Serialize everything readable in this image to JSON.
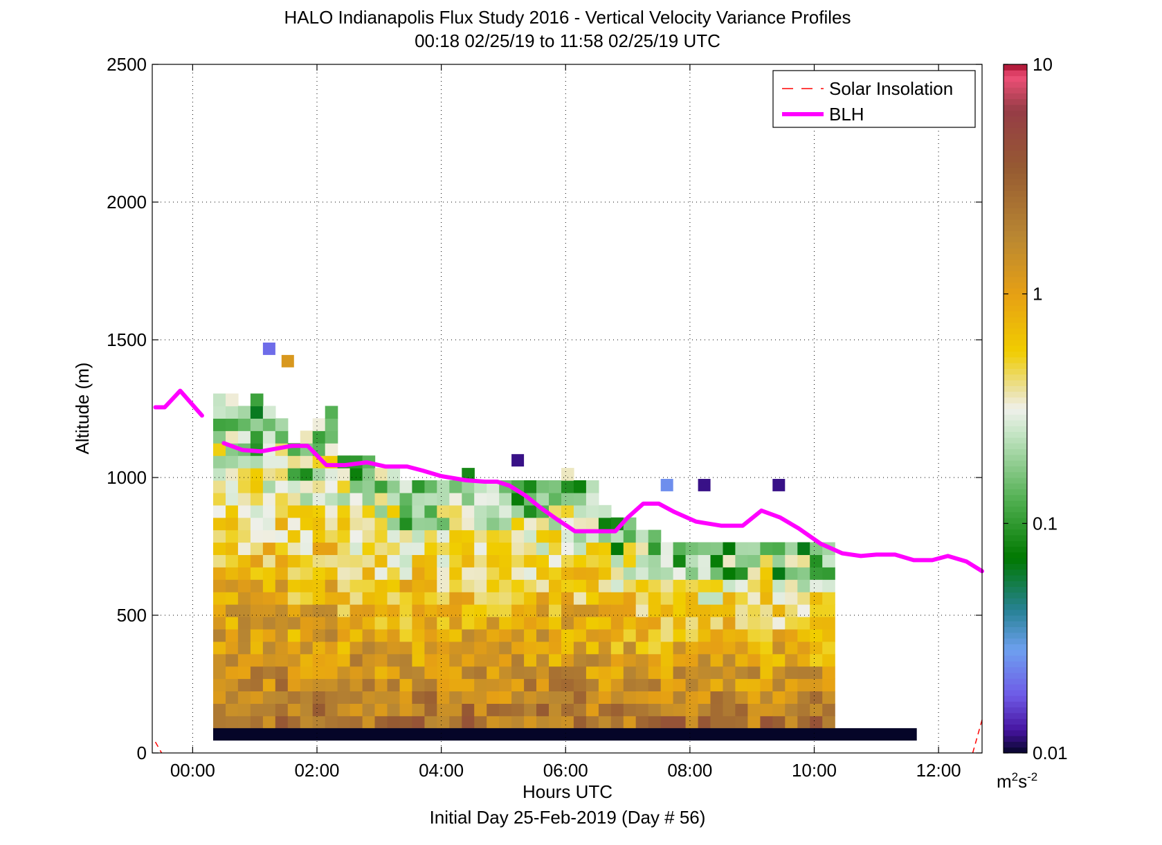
{
  "chart_data": {
    "type": "heatmap",
    "title": "HALO Indianapolis Flux Study 2016 - Vertical Velocity Variance Profiles",
    "subtitle": "00:18 02/25/19 to 11:58 02/25/19  UTC",
    "xlabel": "Hours UTC",
    "xlabel2": "Initial Day 25-Feb-2019 (Day # 56)",
    "ylabel": "Altitude (m)",
    "xlim": [
      -0.65,
      12.7
    ],
    "ylim": [
      0,
      2500
    ],
    "x_ticks": [
      0,
      2,
      4,
      6,
      8,
      10,
      12
    ],
    "x_tick_labels": [
      "00:00",
      "02:00",
      "04:00",
      "06:00",
      "08:00",
      "10:00",
      "12:00"
    ],
    "y_ticks": [
      0,
      500,
      1000,
      1500,
      2000,
      2500
    ],
    "y_tick_labels": [
      "0",
      "500",
      "1000",
      "1500",
      "2000",
      "2500"
    ],
    "grid": true,
    "legend": {
      "placement": "top-right",
      "entries": [
        {
          "label": "Solar Insolation",
          "color": "#ff0000",
          "style": "dashed"
        },
        {
          "label": "BLH",
          "color": "#ff00ff",
          "style": "solid"
        }
      ]
    },
    "colorbar": {
      "scale": "log",
      "range": [
        0.01,
        10
      ],
      "tick_values": [
        0.01,
        0.1,
        1,
        10
      ],
      "tick_labels": [
        "0.01",
        "0.1",
        "1",
        "10"
      ],
      "unit_base": "m",
      "unit_sup1": "2",
      "unit_mid": "s",
      "unit_sup2": "-2"
    },
    "heatmap": {
      "time_start": 0.33,
      "time_step": 0.2,
      "alt_start": 90,
      "alt_step": 45,
      "column_tops": [
        1300,
        1300,
        1255,
        1300,
        1255,
        1210,
        1120,
        1165,
        1210,
        1255,
        1075,
        1075,
        1075,
        1030,
        1030,
        985,
        985,
        985,
        985,
        985,
        1030,
        985,
        985,
        985,
        985,
        985,
        985,
        985,
        1030,
        985,
        985,
        895,
        850,
        850,
        805,
        805,
        760,
        760,
        760,
        760,
        760,
        760,
        760,
        760,
        760,
        760,
        760,
        760,
        760,
        760
      ]
    },
    "isolated_cells": [
      {
        "time": 1.13,
        "alt": 1445,
        "value": 0.02
      },
      {
        "time": 1.43,
        "alt": 1400,
        "value": 1.2
      },
      {
        "time": 5.13,
        "alt": 1040,
        "value": 0.012
      },
      {
        "time": 7.53,
        "alt": 950,
        "value": 0.025
      },
      {
        "time": 8.13,
        "alt": 950,
        "value": 0.012
      },
      {
        "time": 9.33,
        "alt": 950,
        "value": 0.012
      }
    ],
    "bottom_band": {
      "time_from": 0.33,
      "time_to": 11.65,
      "alt_from": 45,
      "alt_to": 90,
      "value": 0.01
    },
    "series": [
      {
        "name": "BLH",
        "x": [
          -0.6,
          -0.45,
          -0.2,
          0.15
        ],
        "y": [
          1255,
          1255,
          1315,
          1225
        ]
      },
      {
        "name": "BLH",
        "x": [
          0.5,
          0.8,
          1.1,
          1.35,
          1.6,
          1.85,
          2.15,
          2.45,
          2.8,
          3.1,
          3.45,
          3.7,
          4.0,
          4.4,
          4.7,
          4.9,
          5.1,
          5.35,
          5.6,
          5.85,
          6.15,
          6.5,
          6.8,
          7.0,
          7.25,
          7.5,
          7.75,
          8.1,
          8.5,
          8.85,
          9.15,
          9.45,
          9.75,
          10.1,
          10.45,
          10.75,
          11.0,
          11.3,
          11.6,
          11.9,
          12.15,
          12.45,
          12.7
        ],
        "y": [
          1125,
          1100,
          1095,
          1105,
          1115,
          1115,
          1045,
          1045,
          1055,
          1040,
          1040,
          1025,
          1005,
          990,
          985,
          985,
          970,
          935,
          890,
          850,
          805,
          805,
          805,
          855,
          905,
          905,
          875,
          840,
          825,
          825,
          880,
          855,
          815,
          760,
          725,
          715,
          720,
          720,
          700,
          700,
          715,
          695,
          660
        ]
      }
    ],
    "solar_insolation": {
      "segments": [
        {
          "x": [
            -0.6,
            -0.5
          ],
          "y": [
            40,
            0
          ]
        },
        {
          "x": [
            12.55,
            12.7
          ],
          "y": [
            0,
            120
          ]
        }
      ]
    }
  }
}
